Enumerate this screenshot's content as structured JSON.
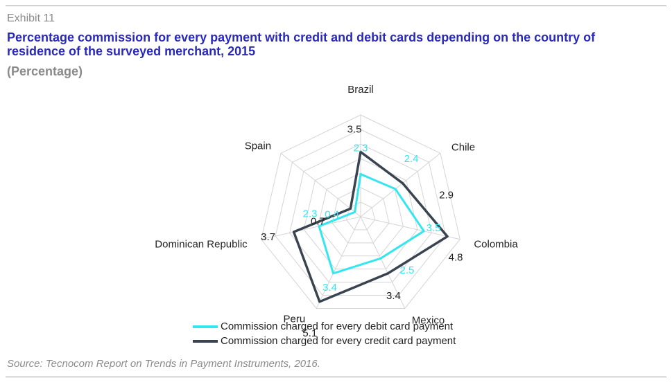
{
  "header": {
    "exhibit": "Exhibit 11",
    "title": "Percentage commission for every payment with credit and debit cards depending on the country of residence of the surveyed merchant, 2015",
    "subtitle": "(Percentage)"
  },
  "footer": {
    "source": "Source: Tecnocom Report on Trends in Payment Instruments, 2016."
  },
  "chart_data": {
    "type": "radar",
    "categories": [
      "Brazil",
      "Chile",
      "Colombia",
      "Mexico",
      "Peru",
      "Dominican Republic",
      "Spain"
    ],
    "rmax": 5.5,
    "grid_levels": 7,
    "series": [
      {
        "name": "Commission charged for every debit card payment",
        "values": [
          2.3,
          2.4,
          3.5,
          2.5,
          3.4,
          2.3,
          0.4
        ],
        "color": "#33e6f0"
      },
      {
        "name": "Commission charged for every credit card payment",
        "values": [
          3.5,
          2.9,
          4.8,
          3.4,
          5.1,
          3.7,
          0.7
        ],
        "color": "#3a4450"
      }
    ]
  },
  "colors": {
    "title": "#2a2ab8",
    "muted": "#8a8a8a",
    "grid": "#d4d4d4"
  }
}
